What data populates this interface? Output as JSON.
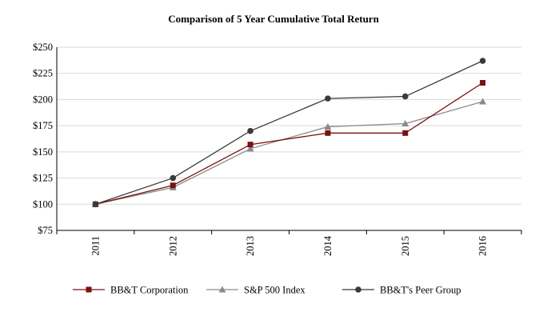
{
  "chart_data": {
    "type": "line",
    "title": "Comparison of 5 Year Cumulative Total Return",
    "xlabel": "",
    "ylabel": "",
    "categories": [
      "2011",
      "2012",
      "2013",
      "2014",
      "2015",
      "2016"
    ],
    "ylim": [
      75,
      250
    ],
    "yticks": [
      75,
      100,
      125,
      150,
      175,
      200,
      225,
      250
    ],
    "ytick_labels": [
      "$75",
      "$100",
      "$125",
      "$150",
      "$175",
      "$200",
      "$225",
      "$250"
    ],
    "grid": "horizontal",
    "legend_position": "bottom",
    "series": [
      {
        "name": "BB&T Corporation",
        "values": [
          100,
          118,
          157,
          168,
          168,
          216
        ],
        "color": "#7a1010",
        "marker": "square"
      },
      {
        "name": "S&P 500 Index",
        "values": [
          100,
          116,
          153,
          174,
          177,
          198
        ],
        "color": "#8a8a8a",
        "marker": "triangle"
      },
      {
        "name": "BB&T's Peer Group",
        "values": [
          100,
          125,
          170,
          201,
          203,
          237
        ],
        "color": "#3a3a3a",
        "marker": "circle"
      }
    ]
  }
}
